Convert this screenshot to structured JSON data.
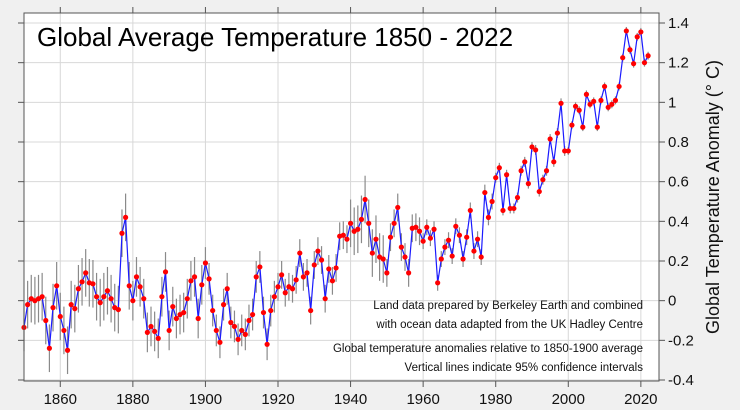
{
  "chart_data": {
    "type": "line",
    "title": "Global Average Temperature 1850 - 2022",
    "xlabel": "",
    "ylabel": "Global Temperature Anomaly (° C)",
    "xlim": [
      1850,
      2025
    ],
    "ylim": [
      -0.4,
      1.4
    ],
    "xticks": [
      1860,
      1880,
      1900,
      1920,
      1940,
      1960,
      1980,
      2000,
      2020
    ],
    "yticks": [
      -0.4,
      -0.2,
      0,
      0.2,
      0.4,
      0.6,
      0.8,
      1,
      1.2,
      1.4
    ],
    "ytick_labels": [
      "-0.4",
      "-0.2",
      "0",
      "0.2",
      "0.4",
      "0.6",
      "0.8",
      "1",
      "1.2",
      "1.4"
    ],
    "grid": true,
    "y_axis_side": "right",
    "series_color": "#1a1aff",
    "marker_color": "#ff0000",
    "errorbar_color": "#8a8a8a",
    "x_start": 1850,
    "values": [
      -0.135,
      -0.02,
      0.01,
      0,
      0.01,
      0.02,
      -0.1,
      -0.24,
      -0.035,
      0.075,
      -0.08,
      -0.15,
      -0.25,
      -0.02,
      -0.04,
      0.06,
      0.095,
      0.14,
      0.09,
      0.085,
      0.02,
      -0.01,
      0.02,
      0.05,
      0.01,
      -0.035,
      -0.045,
      0.34,
      0.42,
      0.075,
      0,
      0.12,
      0.07,
      0.01,
      -0.16,
      -0.13,
      -0.155,
      -0.19,
      0.02,
      0.145,
      -0.15,
      -0.03,
      -0.09,
      -0.07,
      -0.06,
      0.01,
      0.1,
      0.12,
      -0.09,
      0.08,
      0.19,
      0.11,
      -0.05,
      -0.15,
      -0.21,
      -0.02,
      0.06,
      -0.11,
      -0.13,
      -0.195,
      -0.15,
      -0.17,
      -0.1,
      -0.07,
      0.12,
      0.17,
      -0.06,
      -0.22,
      -0.05,
      0.02,
      0.07,
      0.13,
      0.04,
      0.07,
      0.06,
      0.105,
      0.24,
      0.12,
      0.14,
      -0.05,
      0.18,
      0.25,
      0.205,
      0.01,
      0.16,
      0.1,
      0.165,
      0.325,
      0.33,
      0.31,
      0.39,
      0.35,
      0.36,
      0.41,
      0.51,
      0.39,
      0.24,
      0.31,
      0.22,
      0.21,
      0.14,
      0.32,
      0.39,
      0.47,
      0.27,
      0.22,
      0.14,
      0.365,
      0.37,
      0.35,
      0.3,
      0.37,
      0.315,
      0.36,
      0.09,
      0.21,
      0.27,
      0.305,
      0.225,
      0.375,
      0.33,
      0.21,
      0.32,
      0.455,
      0.25,
      0.31,
      0.22,
      0.545,
      0.42,
      0.5,
      0.62,
      0.67,
      0.455,
      0.635,
      0.465,
      0.465,
      0.52,
      0.655,
      0.7,
      0.59,
      0.775,
      0.76,
      0.55,
      0.61,
      0.655,
      0.815,
      0.7,
      0.845,
      0.995,
      0.755,
      0.755,
      0.885,
      0.98,
      0.96,
      0.875,
      1.04,
      0.99,
      1.005,
      0.875,
      1.01,
      1.08,
      0.975,
      0.99,
      1.01,
      1.08,
      1.225,
      1.36,
      1.265,
      1.195,
      1.33,
      1.355,
      1.2,
      1.235
    ],
    "ci_half_width_by_period": [
      {
        "from": 1850,
        "to": 1879,
        "value": 0.12
      },
      {
        "from": 1880,
        "to": 1899,
        "value": 0.1
      },
      {
        "from": 1900,
        "to": 1919,
        "value": 0.08
      },
      {
        "from": 1920,
        "to": 1939,
        "value": 0.07
      },
      {
        "from": 1940,
        "to": 1949,
        "value": 0.12
      },
      {
        "from": 1950,
        "to": 1959,
        "value": 0.07
      },
      {
        "from": 1960,
        "to": 1979,
        "value": 0.04
      },
      {
        "from": 1980,
        "to": 1999,
        "value": 0.025
      },
      {
        "from": 2000,
        "to": 2022,
        "value": 0.02
      }
    ],
    "annotations": [
      "Land data prepared by Berkeley Earth and combined",
      "with ocean data adapted from the UK Hadley Centre",
      "Global temperature anomalies relative to 1850-1900 average",
      "Vertical lines indicate 95% confidence intervals"
    ]
  }
}
